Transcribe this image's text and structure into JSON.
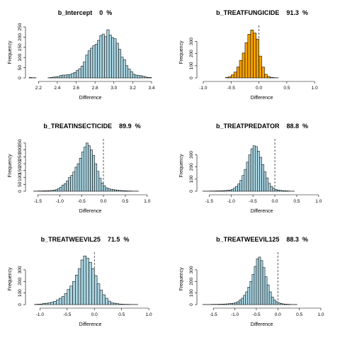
{
  "chart_data": [
    {
      "type": "bar",
      "title": "b_Intercept    0  %",
      "xlabel": "Difference",
      "ylabel": "Frequency",
      "xlim": [
        2.1,
        3.4
      ],
      "ylim": [
        0,
        250
      ],
      "xticks": [
        2.2,
        2.4,
        2.6,
        2.8,
        3.0,
        3.2,
        3.4
      ],
      "xtick_labels": [
        "2.2",
        "2.4",
        "2.6",
        "2.8",
        "3.0",
        "3.2",
        "3.4"
      ],
      "yticks": [
        0,
        50,
        100,
        150,
        200,
        250
      ],
      "ytick_labels": [
        "0",
        "50",
        "100",
        "150",
        "200",
        "250"
      ],
      "vline": null,
      "fill": "#a9d4e1",
      "bin_start": 2.1,
      "bin_width": 0.025,
      "values": [
        2,
        1,
        1,
        0,
        0,
        0,
        0,
        0,
        1,
        2,
        4,
        5,
        7,
        12,
        14,
        14,
        16,
        17,
        22,
        27,
        37,
        45,
        58,
        78,
        112,
        133,
        146,
        158,
        165,
        184,
        208,
        215,
        202,
        236,
        210,
        198,
        192,
        170,
        140,
        102,
        89,
        60,
        44,
        31,
        18,
        14,
        12,
        11,
        8,
        5,
        3,
        2
      ]
    },
    {
      "type": "bar",
      "title": "b_TREATFUNGICIDE    91.3  %",
      "xlabel": "Difference",
      "ylabel": "Frequency",
      "xlim": [
        -1.05,
        1.15
      ],
      "ylim": [
        0,
        420
      ],
      "xticks": [
        -1.0,
        -0.5,
        0.0,
        0.5,
        1.0
      ],
      "xtick_labels": [
        "-1.0",
        "-0.5",
        "0.0",
        "0.5",
        "1.0"
      ],
      "yticks": [
        0,
        100,
        200,
        300
      ],
      "ytick_labels": [
        "0",
        "100",
        "200",
        "300"
      ],
      "vline": 0.0,
      "fill": "#f5a000",
      "bin_start": -0.6,
      "bin_width": 0.05,
      "values": [
        5,
        10,
        25,
        48,
        90,
        145,
        205,
        290,
        360,
        395,
        370,
        320,
        180,
        90,
        30,
        12,
        5,
        2,
        1
      ]
    },
    {
      "type": "bar",
      "title": "b_TREATINSECTICIDE    89.9  %",
      "xlabel": "Difference",
      "ylabel": "Frequency",
      "xlim": [
        -1.7,
        1.1
      ],
      "ylim": [
        0,
        370
      ],
      "xticks": [
        -1.5,
        -1.0,
        -0.5,
        0.0,
        0.5,
        1.0
      ],
      "xtick_labels": [
        "-1.5",
        "-1.0",
        "-0.5",
        "0.0",
        "0.5",
        "1.0"
      ],
      "yticks": [
        0,
        50,
        100,
        150,
        200,
        250,
        300,
        350
      ],
      "ytick_labels": [
        "0",
        "50",
        "100",
        "150",
        "200",
        "250",
        "300",
        "350"
      ],
      "vline": 0.0,
      "fill": "#a9d4e1",
      "bin_start": -1.6,
      "bin_width": 0.05,
      "values": [
        1,
        1,
        2,
        2,
        3,
        3,
        4,
        5,
        6,
        8,
        12,
        20,
        30,
        45,
        55,
        75,
        100,
        115,
        140,
        175,
        200,
        240,
        285,
        320,
        350,
        330,
        300,
        260,
        200,
        145,
        95,
        60,
        40,
        25,
        20,
        15,
        12,
        10,
        8,
        6,
        5,
        4,
        3,
        2,
        2,
        1,
        1,
        1
      ]
    },
    {
      "type": "bar",
      "title": "b_TREATPREDATOR    88.8  %",
      "xlabel": "Difference",
      "ylabel": "Frequency",
      "xlim": [
        -1.7,
        1.1
      ],
      "ylim": [
        0,
        420
      ],
      "xticks": [
        -1.5,
        -1.0,
        -0.5,
        0.0,
        0.5,
        1.0
      ],
      "xtick_labels": [
        "-1.5",
        "-1.0",
        "-0.5",
        "0.0",
        "0.5",
        "1.0"
      ],
      "yticks": [
        0,
        100,
        200,
        300
      ],
      "ytick_labels": [
        "0",
        "100",
        "200",
        "300"
      ],
      "vline": 0.0,
      "fill": "#a9d4e1",
      "bin_start": -1.65,
      "bin_width": 0.05,
      "values": [
        1,
        1,
        1,
        2,
        2,
        2,
        3,
        3,
        4,
        5,
        6,
        8,
        10,
        15,
        25,
        40,
        60,
        90,
        130,
        180,
        240,
        300,
        350,
        375,
        368,
        330,
        280,
        220,
        160,
        110,
        65,
        40,
        25,
        15,
        10,
        8,
        5,
        4,
        3,
        2,
        1,
        1
      ]
    },
    {
      "type": "bar",
      "title": "b_TREATWEEVIL25    71.5  %",
      "xlabel": "Difference",
      "ylabel": "Frequency",
      "xlim": [
        -1.2,
        1.05
      ],
      "ylim": [
        0,
        440
      ],
      "xticks": [
        -1.0,
        -0.5,
        0.0,
        0.5,
        1.0
      ],
      "xtick_labels": [
        "-1.0",
        "-0.5",
        "0.0",
        "0.5",
        "1.0"
      ],
      "yticks": [
        0,
        100,
        200,
        300
      ],
      "ytick_labels": [
        "0",
        "100",
        "200",
        "300"
      ],
      "vline": 0.0,
      "fill": "#a9d4e1",
      "bin_start": -1.1,
      "bin_width": 0.05,
      "values": [
        2,
        3,
        5,
        10,
        12,
        15,
        20,
        28,
        40,
        55,
        70,
        95,
        130,
        160,
        200,
        255,
        310,
        385,
        420,
        400,
        365,
        310,
        250,
        180,
        125,
        85,
        55,
        30,
        15,
        12,
        8,
        5,
        3,
        2,
        2,
        1,
        1,
        1
      ]
    },
    {
      "type": "bar",
      "title": "b_TREATWEEVIL125    88.3  %",
      "xlabel": "Difference",
      "ylabel": "Frequency",
      "xlim": [
        -1.8,
        1.05
      ],
      "ylim": [
        0,
        440
      ],
      "xticks": [
        -1.5,
        -1.0,
        -0.5,
        0.0,
        0.5,
        1.0
      ],
      "xtick_labels": [
        "-1.5",
        "-1.0",
        "-0.5",
        "0.0",
        "0.5",
        "1.0"
      ],
      "yticks": [
        0,
        100,
        200,
        300
      ],
      "ytick_labels": [
        "0",
        "100",
        "200",
        "300"
      ],
      "vline": 0.0,
      "fill": "#a9d4e1",
      "bin_start": -1.75,
      "bin_width": 0.05,
      "values": [
        1,
        1,
        1,
        1,
        2,
        2,
        2,
        3,
        3,
        4,
        5,
        6,
        8,
        10,
        12,
        18,
        25,
        40,
        55,
        80,
        110,
        150,
        200,
        260,
        330,
        395,
        410,
        380,
        320,
        240,
        170,
        110,
        65,
        40,
        25,
        15,
        10,
        6,
        4,
        3,
        2,
        1,
        1,
        1
      ]
    }
  ]
}
